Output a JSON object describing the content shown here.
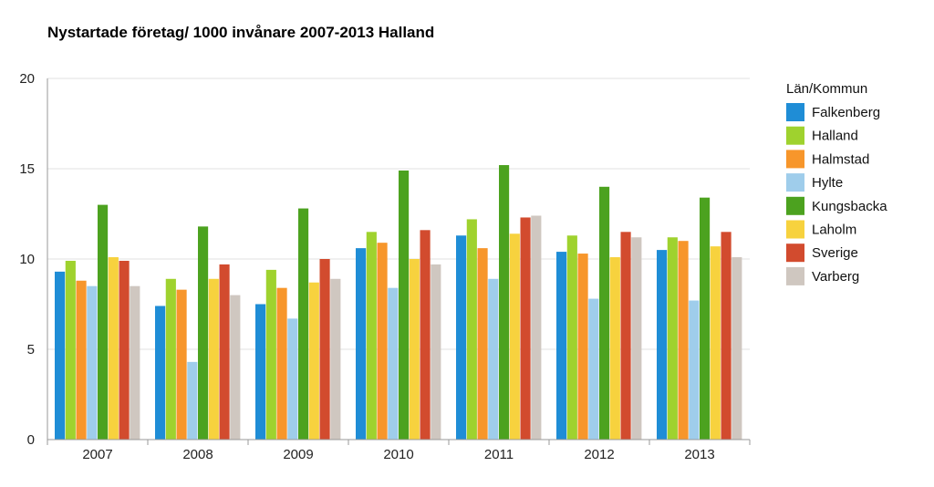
{
  "chart_data": {
    "type": "bar",
    "title": "Nystartade företag/ 1000 invånare 2007-2013 Halland",
    "xlabel": "",
    "ylabel": "",
    "ylim": [
      0,
      20
    ],
    "yticks": [
      0,
      5,
      10,
      15,
      20
    ],
    "grid": true,
    "legend": {
      "title": "Län/Kommun",
      "placement": "right"
    },
    "categories": [
      "2007",
      "2008",
      "2009",
      "2010",
      "2011",
      "2012",
      "2013"
    ],
    "series": [
      {
        "name": "Falkenberg",
        "color": "#1f8dd6",
        "values": [
          9.3,
          7.4,
          7.5,
          10.6,
          11.3,
          10.4,
          10.5
        ]
      },
      {
        "name": "Halland",
        "color": "#9fd22e",
        "values": [
          9.9,
          8.9,
          9.4,
          11.5,
          12.2,
          11.3,
          11.2
        ]
      },
      {
        "name": "Halmstad",
        "color": "#f7962b",
        "values": [
          8.8,
          8.3,
          8.4,
          10.9,
          10.6,
          10.3,
          11.0
        ]
      },
      {
        "name": "Hylte",
        "color": "#9fcdeb",
        "values": [
          8.5,
          4.3,
          6.7,
          8.4,
          8.9,
          7.8,
          7.7
        ]
      },
      {
        "name": "Kungsbacka",
        "color": "#4ca21f",
        "values": [
          13.0,
          11.8,
          12.8,
          14.9,
          15.2,
          14.0,
          13.4
        ]
      },
      {
        "name": "Laholm",
        "color": "#f7d23e",
        "values": [
          10.1,
          8.9,
          8.7,
          10.0,
          11.4,
          10.1,
          10.7
        ]
      },
      {
        "name": "Sverige",
        "color": "#d24b2e",
        "values": [
          9.9,
          9.7,
          10.0,
          11.6,
          12.3,
          11.5,
          11.5
        ]
      },
      {
        "name": "Varberg",
        "color": "#cfc7c0",
        "values": [
          8.5,
          8.0,
          8.9,
          9.7,
          12.4,
          11.2,
          10.1
        ]
      }
    ]
  }
}
